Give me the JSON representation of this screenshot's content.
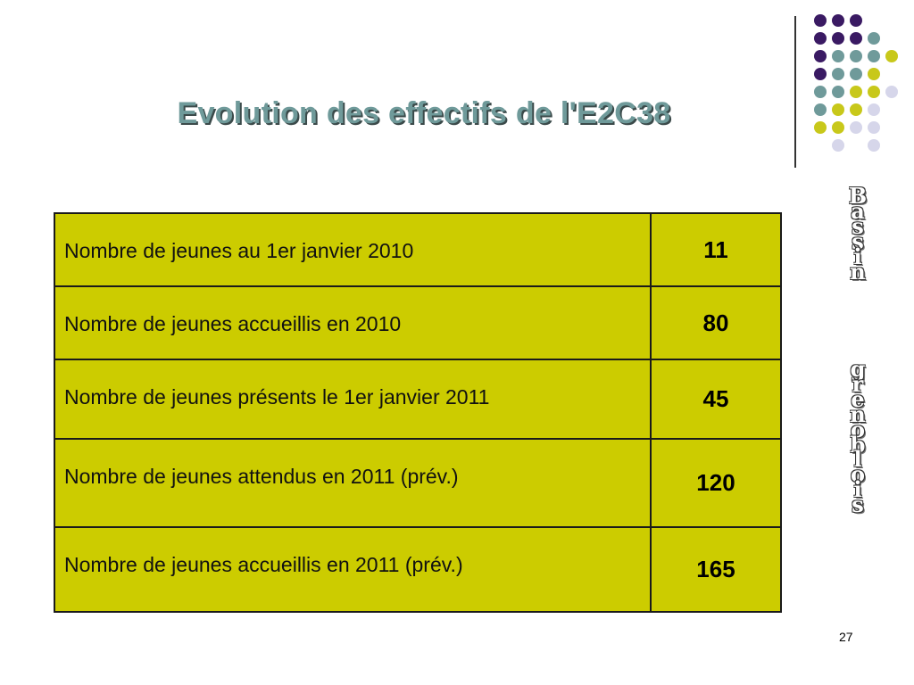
{
  "slide": {
    "title": "Evolution des effectifs de l'E2C38",
    "page_number": "27"
  },
  "colors": {
    "purple": "#3a1a63",
    "teal": "#6f9a9a",
    "lime": "#c8c81a",
    "lavender": "#d6d6ea",
    "table_bg": "#cccc00"
  },
  "table": {
    "rows": [
      {
        "label": "Nombre de jeunes au 1er janvier 2010",
        "value": "11"
      },
      {
        "label": "Nombre de jeunes accueillis en 2010",
        "value": "80"
      },
      {
        "label": "Nombre de jeunes présents le 1er janvier 2011",
        "value": "45"
      },
      {
        "label": "Nombre de jeunes attendus en 2011 (prév.)",
        "value": "120"
      },
      {
        "label": "Nombre de jeunes accueillis en 2011 (prév.)",
        "value": "165"
      }
    ]
  },
  "side_text": {
    "word1": "Bassin",
    "word2": "grenoblois"
  }
}
